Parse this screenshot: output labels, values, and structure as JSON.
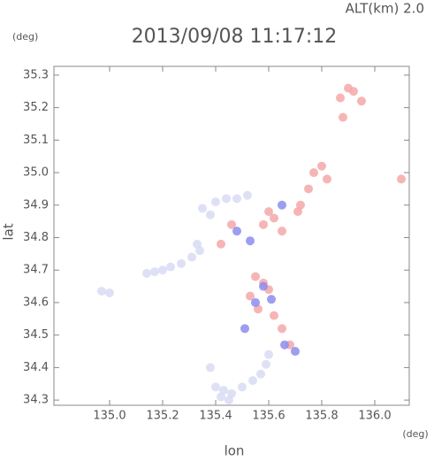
{
  "chart_data": {
    "type": "scatter",
    "title": "2013/09/08 11:17:12",
    "subtitle": "ALT(km) 2.0",
    "x_label": "lon",
    "y_label": "lat",
    "x_unit": "(deg)",
    "y_unit": "(deg)",
    "xlim": [
      134.79,
      136.13
    ],
    "ylim": [
      34.284,
      35.327
    ],
    "xticks": [
      {
        "value": 135,
        "label": "135.0"
      },
      135.2,
      135.4,
      135.6,
      135.8,
      {
        "value": 136,
        "label": "136.0"
      }
    ],
    "yticks": [
      34.3,
      34.4,
      34.5,
      34.6,
      34.7,
      34.8,
      34.9,
      {
        "value": 35,
        "label": "35.0"
      },
      35.1,
      35.2,
      35.3
    ],
    "x": [
      134.97,
      135.0,
      135.14,
      135.17,
      135.2,
      135.23,
      135.27,
      135.31,
      135.34,
      135.33,
      135.38,
      135.4,
      135.43,
      135.46,
      135.5,
      135.54,
      135.57,
      135.59,
      135.6,
      135.45,
      135.42,
      135.35,
      135.4,
      135.44,
      135.48,
      135.52,
      135.38,
      135.9,
      135.92,
      135.95,
      135.87,
      135.88,
      135.77,
      135.8,
      135.82,
      135.75,
      135.72,
      135.71,
      135.6,
      135.62,
      135.58,
      135.65,
      135.55,
      135.58,
      135.6,
      135.53,
      135.56,
      135.62,
      135.65,
      135.68,
      135.46,
      135.42,
      136.1,
      135.58,
      135.55,
      135.61,
      135.48,
      135.66,
      135.7,
      135.51,
      135.65,
      135.53
    ],
    "y": [
      34.635,
      34.63,
      34.69,
      34.695,
      34.7,
      34.71,
      34.72,
      34.74,
      34.76,
      34.78,
      34.4,
      34.34,
      34.33,
      34.32,
      34.34,
      34.36,
      34.38,
      34.41,
      34.44,
      34.3,
      34.31,
      34.89,
      34.91,
      34.92,
      34.92,
      34.93,
      34.87,
      35.26,
      35.25,
      35.22,
      35.23,
      35.17,
      35.0,
      35.02,
      34.98,
      34.95,
      34.9,
      34.88,
      34.88,
      34.86,
      34.84,
      34.82,
      34.68,
      34.66,
      34.64,
      34.62,
      34.58,
      34.56,
      34.52,
      34.47,
      34.84,
      34.78,
      34.98,
      34.65,
      34.6,
      34.61,
      34.82,
      34.47,
      34.45,
      34.52,
      34.9,
      34.79
    ],
    "colors": [
      "#d8dcf4",
      "#d8dcf4",
      "#d8dcf4",
      "#d8dcf4",
      "#d8dcf4",
      "#d8dcf4",
      "#d8dcf4",
      "#d8dcf4",
      "#d8dcf4",
      "#d8dcf4",
      "#d8dcf4",
      "#d8dcf4",
      "#d8dcf4",
      "#d8dcf4",
      "#d8dcf4",
      "#d8dcf4",
      "#d8dcf4",
      "#d8dcf4",
      "#d8dcf4",
      "#d8dcf4",
      "#d8dcf4",
      "#d8dcf4",
      "#d8dcf4",
      "#d8dcf4",
      "#d8dcf4",
      "#d8dcf4",
      "#d8dcf4",
      "#f4a8a8",
      "#f4a8a8",
      "#f4a8a8",
      "#f4a8a8",
      "#f4a8a8",
      "#f4a8a8",
      "#f4a8a8",
      "#f4a8a8",
      "#f4a8a8",
      "#f4a8a8",
      "#f4a8a8",
      "#f4a8a8",
      "#f4a8a8",
      "#f4a8a8",
      "#f4a8a8",
      "#f4a8a8",
      "#f4a8a8",
      "#f4a8a8",
      "#f4a8a8",
      "#f4a8a8",
      "#f4a8a8",
      "#f4a8a8",
      "#f4a8a8",
      "#f4a8a8",
      "#f4a8a8",
      "#f4a8a8",
      "#8c8cee",
      "#8c8cee",
      "#8c8cee",
      "#8c8cee",
      "#8c8cee",
      "#8c8cee",
      "#8c8cee",
      "#8c8cee",
      "#8c8cee"
    ]
  }
}
